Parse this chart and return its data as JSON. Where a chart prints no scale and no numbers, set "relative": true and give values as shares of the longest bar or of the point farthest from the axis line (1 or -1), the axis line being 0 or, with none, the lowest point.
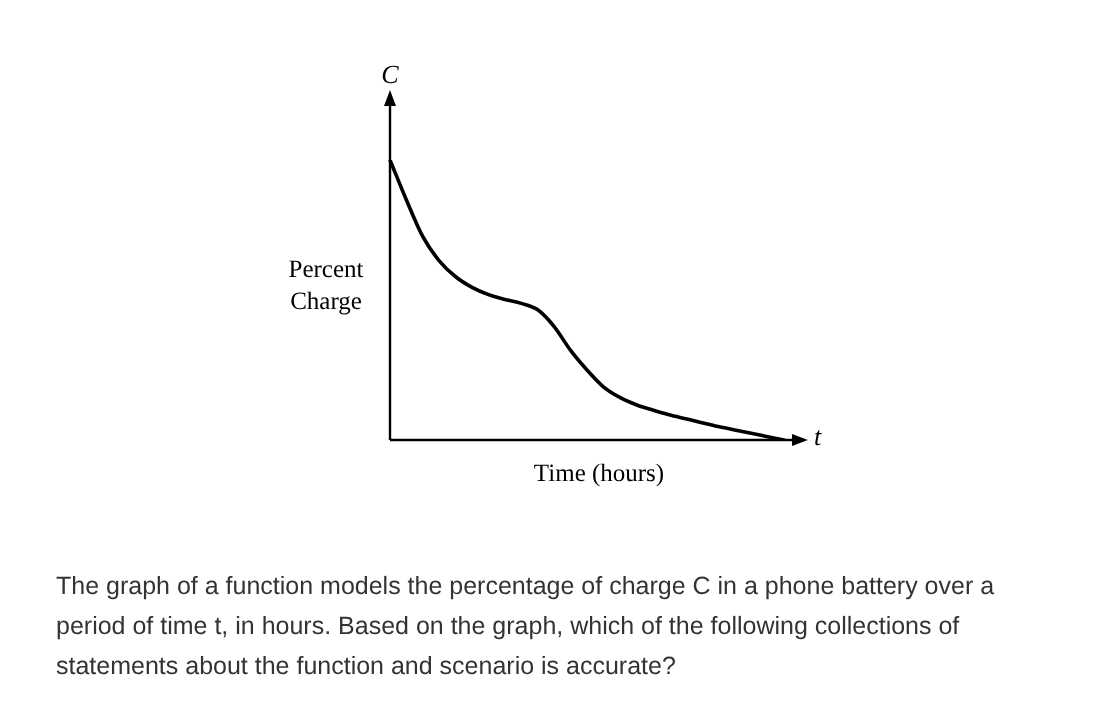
{
  "chart_data": {
    "type": "line",
    "relative": true,
    "xlabel": "Time (hours)",
    "ylabel": "Percent\nCharge",
    "categories": [
      null,
      null,
      null,
      null,
      null,
      null,
      null,
      null,
      null,
      null,
      null,
      null,
      null,
      null,
      null,
      null,
      null,
      null,
      null,
      null,
      null,
      null,
      null,
      null,
      null
    ],
    "series": [
      {
        "color": "#000000",
        "values": [
          1.0,
          0.857,
          0.726,
          0.64,
          0.583,
          0.545,
          0.519,
          0.502,
          0.488,
          0.465,
          0.405,
          0.32,
          0.25,
          0.19,
          0.152,
          0.126,
          0.107,
          0.09,
          0.076,
          0.062,
          0.048,
          0.036,
          0.024,
          0.012,
          0
        ]
      }
    ],
    "marker": "none",
    "line_style": "solid",
    "legend": false,
    "annotations": [
      "C",
      "t",
      "The graph of a function models the percentage of charge C in a phone battery over a period of time t, in hours. Based on the graph, which of the following collections of statements about the function and scenario is accurate?"
    ]
  }
}
